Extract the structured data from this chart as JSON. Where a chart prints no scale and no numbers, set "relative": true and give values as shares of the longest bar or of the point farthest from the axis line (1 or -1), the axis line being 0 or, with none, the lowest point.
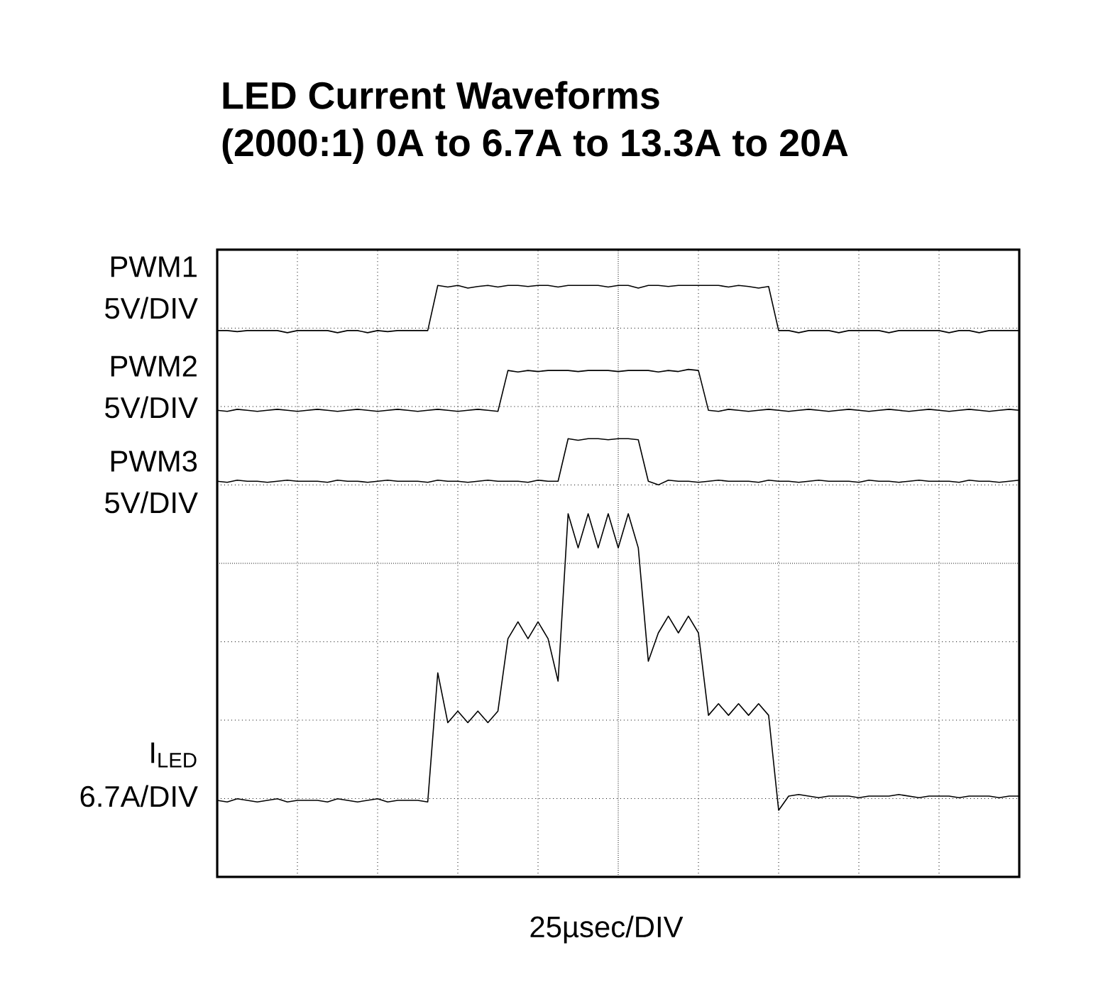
{
  "chart_data": {
    "type": "line",
    "title": "LED Current Waveforms",
    "subtitle": "(2000:1) 0A to 6.7A to 13.3A to 20A",
    "xlabel": "25µsec/DIV",
    "annotations": [
      "5V/DIV",
      "5V/DIV",
      "5V/DIV",
      "6.7A/DIV"
    ],
    "relative": true,
    "grid": true,
    "categories": [
      null,
      null,
      null,
      null,
      null,
      null,
      null,
      null,
      null,
      null,
      null,
      null,
      null,
      null,
      null,
      null,
      null,
      null,
      null,
      null,
      null,
      null,
      null,
      null,
      null,
      null,
      null,
      null,
      null,
      null,
      null,
      null,
      null,
      null,
      null,
      null,
      null,
      null,
      null,
      null,
      null,
      null,
      null,
      null,
      null,
      null,
      null,
      null,
      null,
      null,
      null,
      null,
      null,
      null,
      null,
      null,
      null,
      null,
      null,
      null,
      null,
      null,
      null,
      null,
      null,
      null,
      null,
      null,
      null,
      null,
      null,
      null,
      null,
      null,
      null,
      null,
      null,
      null,
      null,
      null,
      null
    ],
    "series": [
      {
        "name": "PWM1",
        "color": "#000000",
        "values": [
          0.914,
          0.914,
          0.912,
          0.914,
          0.914,
          0.914,
          0.914,
          0.91,
          0.914,
          0.914,
          0.914,
          0.914,
          0.91,
          0.914,
          0.914,
          0.91,
          0.914,
          0.912,
          0.914,
          0.914,
          0.914,
          0.914,
          1.0,
          0.997,
          1.0,
          0.995,
          0.998,
          1.0,
          0.997,
          1.0,
          1.0,
          0.998,
          1.0,
          1.0,
          0.997,
          1.0,
          1.0,
          1.0,
          1.0,
          0.997,
          1.0,
          1.0,
          0.995,
          1.0,
          1.0,
          0.998,
          1.0,
          1.0,
          1.0,
          1.0,
          1.0,
          0.997,
          1.0,
          0.998,
          0.995,
          0.998,
          0.914,
          0.914,
          0.91,
          0.914,
          0.914,
          0.914,
          0.91,
          0.914,
          0.914,
          0.914,
          0.914,
          0.91,
          0.914,
          0.914,
          0.914,
          0.914,
          0.914,
          0.91,
          0.914,
          0.914,
          0.91,
          0.914,
          0.914,
          0.914,
          0.914
        ]
      },
      {
        "name": "PWM2",
        "color": "#000000",
        "values": [
          0.762,
          0.76,
          0.764,
          0.762,
          0.76,
          0.762,
          0.764,
          0.762,
          0.76,
          0.762,
          0.764,
          0.762,
          0.76,
          0.762,
          0.764,
          0.762,
          0.76,
          0.762,
          0.764,
          0.762,
          0.76,
          0.762,
          0.764,
          0.762,
          0.76,
          0.762,
          0.764,
          0.762,
          0.76,
          0.838,
          0.835,
          0.838,
          0.836,
          0.838,
          0.838,
          0.838,
          0.836,
          0.838,
          0.838,
          0.838,
          0.836,
          0.838,
          0.838,
          0.838,
          0.835,
          0.838,
          0.836,
          0.84,
          0.838,
          0.762,
          0.76,
          0.764,
          0.762,
          0.76,
          0.762,
          0.764,
          0.762,
          0.76,
          0.762,
          0.764,
          0.762,
          0.76,
          0.762,
          0.764,
          0.762,
          0.76,
          0.762,
          0.764,
          0.762,
          0.76,
          0.762,
          0.764,
          0.762,
          0.76,
          0.762,
          0.764,
          0.762,
          0.76,
          0.762,
          0.764,
          0.762
        ]
      },
      {
        "name": "PWM3",
        "color": "#000000",
        "values": [
          0.627,
          0.625,
          0.629,
          0.627,
          0.627,
          0.625,
          0.627,
          0.629,
          0.627,
          0.627,
          0.627,
          0.625,
          0.629,
          0.627,
          0.627,
          0.625,
          0.627,
          0.629,
          0.627,
          0.627,
          0.627,
          0.625,
          0.629,
          0.627,
          0.627,
          0.625,
          0.627,
          0.629,
          0.627,
          0.627,
          0.627,
          0.625,
          0.629,
          0.627,
          0.627,
          0.708,
          0.705,
          0.708,
          0.708,
          0.706,
          0.708,
          0.708,
          0.706,
          0.627,
          0.62,
          0.629,
          0.627,
          0.627,
          0.625,
          0.627,
          0.629,
          0.627,
          0.627,
          0.627,
          0.625,
          0.629,
          0.627,
          0.627,
          0.625,
          0.627,
          0.629,
          0.627,
          0.627,
          0.627,
          0.625,
          0.629,
          0.627,
          0.627,
          0.625,
          0.627,
          0.629,
          0.627,
          0.627,
          0.627,
          0.625,
          0.629,
          0.627,
          0.627,
          0.625,
          0.627,
          0.629
        ]
      },
      {
        "name": "I$_{LED}$",
        "color": "#000000",
        "values": [
          0.019,
          0.016,
          0.022,
          0.019,
          0.016,
          0.019,
          0.022,
          0.016,
          0.019,
          0.019,
          0.019,
          0.016,
          0.022,
          0.019,
          0.016,
          0.019,
          0.022,
          0.016,
          0.019,
          0.019,
          0.019,
          0.016,
          0.262,
          0.167,
          0.189,
          0.167,
          0.189,
          0.167,
          0.189,
          0.327,
          0.359,
          0.327,
          0.359,
          0.327,
          0.246,
          0.565,
          0.5,
          0.565,
          0.5,
          0.565,
          0.5,
          0.565,
          0.5,
          0.284,
          0.338,
          0.37,
          0.338,
          0.37,
          0.338,
          0.181,
          0.203,
          0.181,
          0.203,
          0.181,
          0.203,
          0.181,
          0,
          0.027,
          0.03,
          0.027,
          0.024,
          0.027,
          0.027,
          0.027,
          0.024,
          0.027,
          0.027,
          0.027,
          0.03,
          0.027,
          0.024,
          0.027,
          0.027,
          0.027,
          0.024,
          0.027,
          0.027,
          0.027,
          0.024,
          0.027,
          0.027
        ]
      }
    ]
  }
}
